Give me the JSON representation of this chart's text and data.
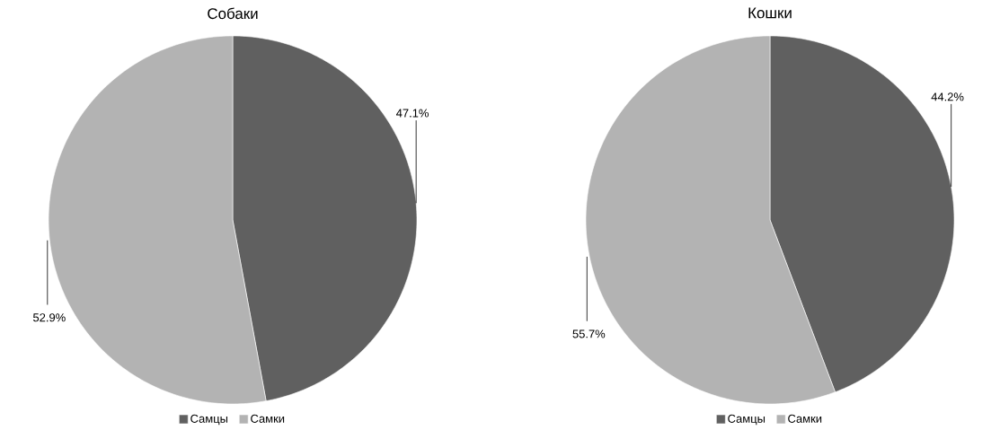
{
  "chart_data": [
    {
      "type": "pie",
      "title": "Собаки",
      "categories": [
        "Самцы",
        "Самки"
      ],
      "values": [
        47.1,
        52.9
      ],
      "colors": [
        "#606060",
        "#b3b3b3"
      ],
      "value_labels": [
        "47.1%",
        "52.9%"
      ],
      "legend": "bottom"
    },
    {
      "type": "pie",
      "title": "Кошки",
      "categories": [
        "Самцы",
        "Самки"
      ],
      "values": [
        44.2,
        55.7
      ],
      "colors": [
        "#606060",
        "#b3b3b3"
      ],
      "value_labels": [
        "44.2%",
        "55.7%"
      ],
      "legend": "bottom"
    }
  ]
}
